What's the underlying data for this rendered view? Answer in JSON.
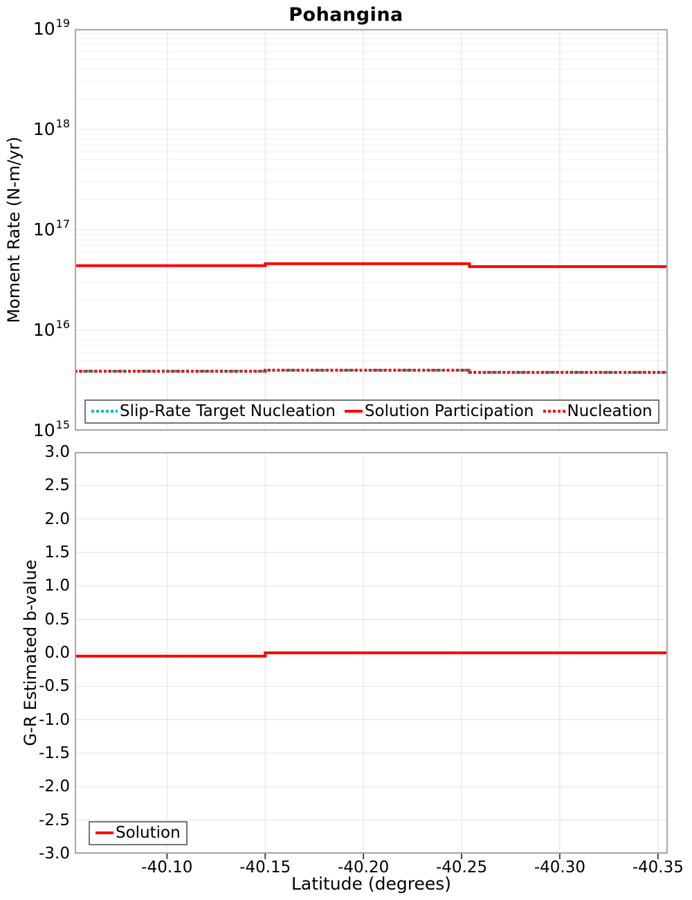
{
  "colors": {
    "solution_red": "#ff0000",
    "target_teal": "#00bbbb",
    "plot_border": "#a8a8a8",
    "grid_major": "#e2e2e2",
    "grid_minor": "#f1f1f1",
    "tick_mark": "#444444",
    "background": "#ffffff",
    "legend_border": "#757575"
  },
  "chart_data": [
    {
      "type": "line",
      "subtype": "step",
      "title": "Pohangina",
      "ylabel": "Moment Rate (N-m/yr)",
      "yscale": "log",
      "ylim": [
        1000000000000000.0,
        1e+19
      ],
      "yticks": [
        {
          "base": "10",
          "exponent": "19",
          "value": 1e+19
        },
        {
          "base": "10",
          "exponent": "18",
          "value": 1e+18
        },
        {
          "base": "10",
          "exponent": "17",
          "value": 1e+17
        },
        {
          "base": "10",
          "exponent": "16",
          "value": 1e+16
        },
        {
          "base": "10",
          "exponent": "15",
          "value": 1000000000000000.0
        }
      ],
      "xlim": [
        -40.053,
        -40.355
      ],
      "x_inverted": true,
      "grid": true,
      "legend_position": "bottom-left-inside",
      "series": [
        {
          "name": "Slip-Rate Target Nucleation",
          "color": "#00bbbb",
          "line_style": "dotted",
          "segments": [
            {
              "x_start": -40.053,
              "x_end": -40.15,
              "value": 3900000000000000.0
            },
            {
              "x_start": -40.15,
              "x_end": -40.254,
              "value": 4000000000000000.0
            },
            {
              "x_start": -40.254,
              "x_end": -40.355,
              "value": 3800000000000000.0
            }
          ]
        },
        {
          "name": "Solution Participation",
          "color": "#ff0000",
          "line_style": "solid",
          "segments": [
            {
              "x_start": -40.053,
              "x_end": -40.15,
              "value": 4.4e+16
            },
            {
              "x_start": -40.15,
              "x_end": -40.254,
              "value": 4.6e+16
            },
            {
              "x_start": -40.254,
              "x_end": -40.355,
              "value": 4.3e+16
            }
          ]
        },
        {
          "name": "Nucleation",
          "color": "#ff0000",
          "line_style": "dotted",
          "segments": [
            {
              "x_start": -40.053,
              "x_end": -40.15,
              "value": 3900000000000000.0
            },
            {
              "x_start": -40.15,
              "x_end": -40.254,
              "value": 4000000000000000.0
            },
            {
              "x_start": -40.254,
              "x_end": -40.355,
              "value": 3800000000000000.0
            }
          ]
        }
      ]
    },
    {
      "type": "line",
      "subtype": "step",
      "ylabel": "G-R Estimated b-value",
      "xlabel": "Latitude (degrees)",
      "ylim": [
        -3.0,
        3.0
      ],
      "yticks": [
        {
          "label": "3.0",
          "value": 3.0
        },
        {
          "label": "2.5",
          "value": 2.5
        },
        {
          "label": "2.0",
          "value": 2.0
        },
        {
          "label": "1.5",
          "value": 1.5
        },
        {
          "label": "1.0",
          "value": 1.0
        },
        {
          "label": "0.5",
          "value": 0.5
        },
        {
          "label": "0.0",
          "value": 0.0
        },
        {
          "label": "-0.5",
          "value": -0.5
        },
        {
          "label": "-1.0",
          "value": -1.0
        },
        {
          "label": "-1.5",
          "value": -1.5
        },
        {
          "label": "-2.0",
          "value": -2.0
        },
        {
          "label": "-2.5",
          "value": -2.5
        },
        {
          "label": "-3.0",
          "value": -3.0
        }
      ],
      "xticks": [
        {
          "label": "-40.10",
          "value": -40.1
        },
        {
          "label": "-40.15",
          "value": -40.15
        },
        {
          "label": "-40.20",
          "value": -40.2
        },
        {
          "label": "-40.25",
          "value": -40.25
        },
        {
          "label": "-40.30",
          "value": -40.3
        },
        {
          "label": "-40.35",
          "value": -40.35
        }
      ],
      "xlim": [
        -40.053,
        -40.355
      ],
      "x_inverted": true,
      "grid": true,
      "legend_position": "bottom-left-inside",
      "series": [
        {
          "name": "Solution",
          "color": "#ff0000",
          "line_style": "solid",
          "segments": [
            {
              "x_start": -40.053,
              "x_end": -40.15,
              "value": -0.05
            },
            {
              "x_start": -40.15,
              "x_end": -40.355,
              "value": 0.0
            }
          ]
        }
      ]
    }
  ]
}
